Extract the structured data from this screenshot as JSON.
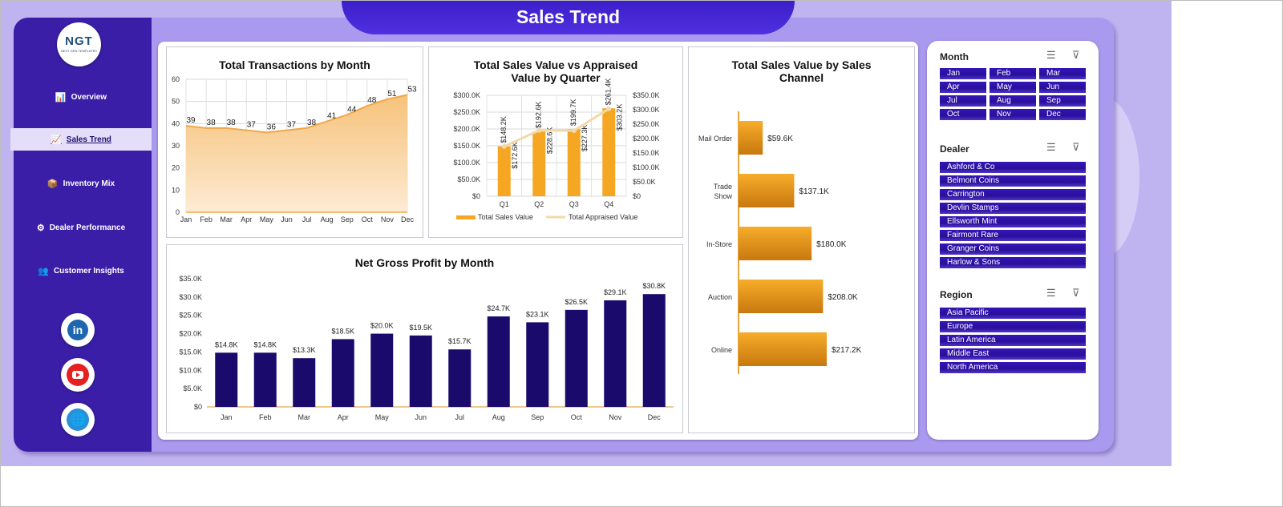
{
  "page_title": "Sales Trend",
  "logo": {
    "text": "NGT",
    "subtext": "NEXT GEN TEMPLATES"
  },
  "nav": [
    {
      "label": "Overview",
      "icon": "bar-chart-icon",
      "glyph": "📊",
      "active": false
    },
    {
      "label": "Sales Trend",
      "icon": "trend-chart-icon",
      "glyph": "📈",
      "active": true
    },
    {
      "label": "Inventory Mix",
      "icon": "box-icon",
      "glyph": "📦",
      "active": false
    },
    {
      "label": "Dealer Performance",
      "icon": "gear-icon",
      "glyph": "⚙",
      "active": false
    },
    {
      "label": "Customer Insights",
      "icon": "people-icon",
      "glyph": "👥",
      "active": false
    }
  ],
  "social": [
    {
      "name": "linkedin",
      "glyph": "in"
    },
    {
      "name": "youtube",
      "glyph": ""
    },
    {
      "name": "website",
      "glyph": "🌐"
    }
  ],
  "colors": {
    "accent": "#3a1ea8",
    "bar_orange": "#f5a623",
    "bar_navy": "#1a0a6b",
    "line_light": "#f3d9a8"
  },
  "charts": {
    "transactions": {
      "chart_data": {
        "type": "area",
        "title": "Total Transactions by Month",
        "categories": [
          "Jan",
          "Feb",
          "Mar",
          "Apr",
          "May",
          "Jun",
          "Jul",
          "Aug",
          "Sep",
          "Oct",
          "Nov",
          "Dec"
        ],
        "values": [
          39,
          38,
          38,
          37,
          36,
          37,
          38,
          41,
          44,
          48,
          51,
          53
        ],
        "data_labels": [
          "39",
          "38",
          "38",
          "37",
          "36",
          "37",
          "38",
          "41",
          "44",
          "48",
          "51",
          "53"
        ],
        "ylim": [
          0,
          60
        ],
        "yticks": [
          "0",
          "10",
          "20",
          "30",
          "40",
          "50",
          "60"
        ],
        "grid": true
      }
    },
    "quarter": {
      "chart_data": {
        "type": "bar",
        "title": "Total Sales Value vs Appraised Value by Quarter",
        "title_lines": [
          "Total Sales Value vs Appraised",
          "Value by Quarter"
        ],
        "categories": [
          "Q1",
          "Q2",
          "Q3",
          "Q4"
        ],
        "series": [
          {
            "name": "Total Sales Value",
            "values": [
              148.2,
              192.6,
              199.7,
              261.4
            ],
            "labels": [
              "$148.2K",
              "$192.6K",
              "$199.7K",
              "$261.4K"
            ]
          },
          {
            "name": "Total Appraised Value",
            "values": [
              172.6,
              228.6,
              227.3,
              303.2
            ],
            "labels": [
              "$172.6K",
              "$228.6K",
              "$227.3K",
              "$303.2K"
            ]
          }
        ],
        "ylim": [
          0,
          300
        ],
        "yticks_left": [
          "$0",
          "$50.0K",
          "$100.0K",
          "$150.0K",
          "$200.0K",
          "$250.0K",
          "$300.0K"
        ],
        "ylim_right": [
          0,
          350
        ],
        "yticks_right": [
          "$0",
          "$50.0K",
          "$100.0K",
          "$150.0K",
          "$200.0K",
          "$250.0K",
          "$300.0K",
          "$350.0K"
        ],
        "legend": "bottom"
      }
    },
    "channel": {
      "chart_data": {
        "type": "bar",
        "orientation": "horizontal",
        "title": "Total Sales Value by Sales Channel",
        "title_lines": [
          "Total Sales Value by Sales",
          "Channel"
        ],
        "categories": [
          "Mail Order",
          "Trade Show",
          "In-Store",
          "Auction",
          "Online"
        ],
        "category_lines": [
          [
            "Mail Order"
          ],
          [
            "Trade",
            "Show"
          ],
          [
            "In-Store"
          ],
          [
            "Auction"
          ],
          [
            "Online"
          ]
        ],
        "values": [
          59.6,
          137.1,
          180.0,
          208.0,
          217.2
        ],
        "labels": [
          "$59.6K",
          "$137.1K",
          "$180.0K",
          "$208.0K",
          "$217.2K"
        ]
      }
    },
    "profit": {
      "chart_data": {
        "type": "bar",
        "title": "Net Gross Profit by Month",
        "categories": [
          "Jan",
          "Feb",
          "Mar",
          "Apr",
          "May",
          "Jun",
          "Jul",
          "Aug",
          "Sep",
          "Oct",
          "Nov",
          "Dec"
        ],
        "values": [
          14.8,
          14.8,
          13.3,
          18.5,
          20.0,
          19.5,
          15.7,
          24.7,
          23.1,
          26.5,
          29.1,
          30.8
        ],
        "labels": [
          "$14.8K",
          "$14.8K",
          "$13.3K",
          "$18.5K",
          "$20.0K",
          "$19.5K",
          "$15.7K",
          "$24.7K",
          "$23.1K",
          "$26.5K",
          "$29.1K",
          "$30.8K"
        ],
        "ylim": [
          0,
          35
        ],
        "yticks": [
          "$0",
          "$5.0K",
          "$10.0K",
          "$15.0K",
          "$20.0K",
          "$25.0K",
          "$30.0K",
          "$35.0K"
        ]
      }
    }
  },
  "slicers": {
    "month": {
      "title": "Month",
      "items": [
        "Jan",
        "Feb",
        "Mar",
        "Apr",
        "May",
        "Jun",
        "Jul",
        "Aug",
        "Sep",
        "Oct",
        "Nov",
        "Dec"
      ]
    },
    "dealer": {
      "title": "Dealer",
      "items": [
        "Ashford & Co",
        "Belmont Coins",
        "Carrington",
        "Devlin Stamps",
        "Ellsworth Mint",
        "Fairmont Rare",
        "Granger Coins",
        "Harlow & Sons"
      ]
    },
    "region": {
      "title": "Region",
      "items": [
        "Asia Pacific",
        "Europe",
        "Latin America",
        "Middle East",
        "North America"
      ]
    }
  }
}
